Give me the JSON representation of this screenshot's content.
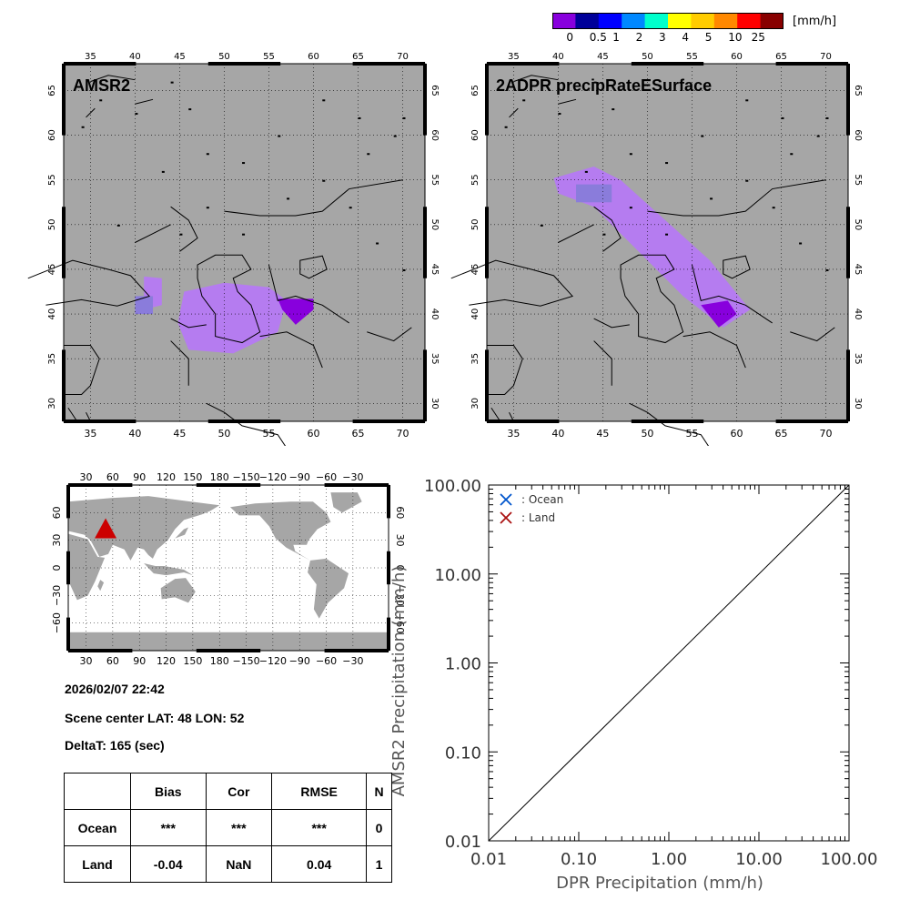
{
  "colorbar": {
    "unit": "[mm/h]",
    "colors": [
      "#8800dd",
      "#000099",
      "#0000ff",
      "#0088ff",
      "#00ffcc",
      "#ffff00",
      "#ffcc00",
      "#ff8800",
      "#ff0000",
      "#880000"
    ],
    "labels": [
      "0",
      "0.5",
      "1",
      "2",
      "3",
      "4",
      "5",
      "10",
      "25"
    ]
  },
  "map_left": {
    "title": "AMSR2"
  },
  "map_right": {
    "title": "2ADPR precipRateESurface"
  },
  "map_axes": {
    "lon_ticks": [
      "35",
      "40",
      "45",
      "50",
      "55",
      "60",
      "65",
      "70"
    ],
    "lat_ticks": [
      "30",
      "35",
      "40",
      "45",
      "50",
      "55",
      "60",
      "65"
    ],
    "background": "#a6a6a6",
    "rain_color": "#b57cf0"
  },
  "globe": {
    "lon_ticks": [
      "30",
      "60",
      "90",
      "120",
      "150",
      "180",
      "−150",
      "−120",
      "−90",
      "−60",
      "−30"
    ],
    "lat_ticks": [
      "60",
      "30",
      "0",
      "−30",
      "−60"
    ],
    "marker_color": "#cc0000"
  },
  "info": {
    "datetime": "2026/02/07 22:42",
    "scene_center": "Scene center LAT: 48   LON:  52",
    "delta_t": "DeltaT:  165 (sec)"
  },
  "stats_table": {
    "headers": [
      "",
      "Bias",
      "Cor",
      "RMSE",
      "N"
    ],
    "rows": [
      [
        "Ocean",
        "***",
        "***",
        "***",
        "0"
      ],
      [
        "Land",
        "-0.04",
        "NaN",
        "0.04",
        "1"
      ]
    ]
  },
  "chart_data": {
    "type": "scatter",
    "xlabel": "DPR Precipitation (mm/h)",
    "ylabel": "AMSR2 Precipitation (mm/h)",
    "xlim": [
      0.01,
      100
    ],
    "ylim": [
      0.01,
      100
    ],
    "scale": "log",
    "x_tick_labels": [
      "0.01",
      "0.10",
      "1.00",
      "10.00",
      "100.00"
    ],
    "y_tick_labels": [
      "0.01",
      "0.10",
      "1.00",
      "10.00",
      "100.00"
    ],
    "legend": [
      {
        "name": ": Ocean",
        "marker": "x",
        "color": "#0055cc"
      },
      {
        "name": ": Land",
        "marker": "x",
        "color": "#aa1111"
      }
    ],
    "one_to_one_line": true,
    "series": [
      {
        "name": ": Ocean",
        "points": []
      },
      {
        "name": ": Land",
        "points": []
      }
    ]
  }
}
